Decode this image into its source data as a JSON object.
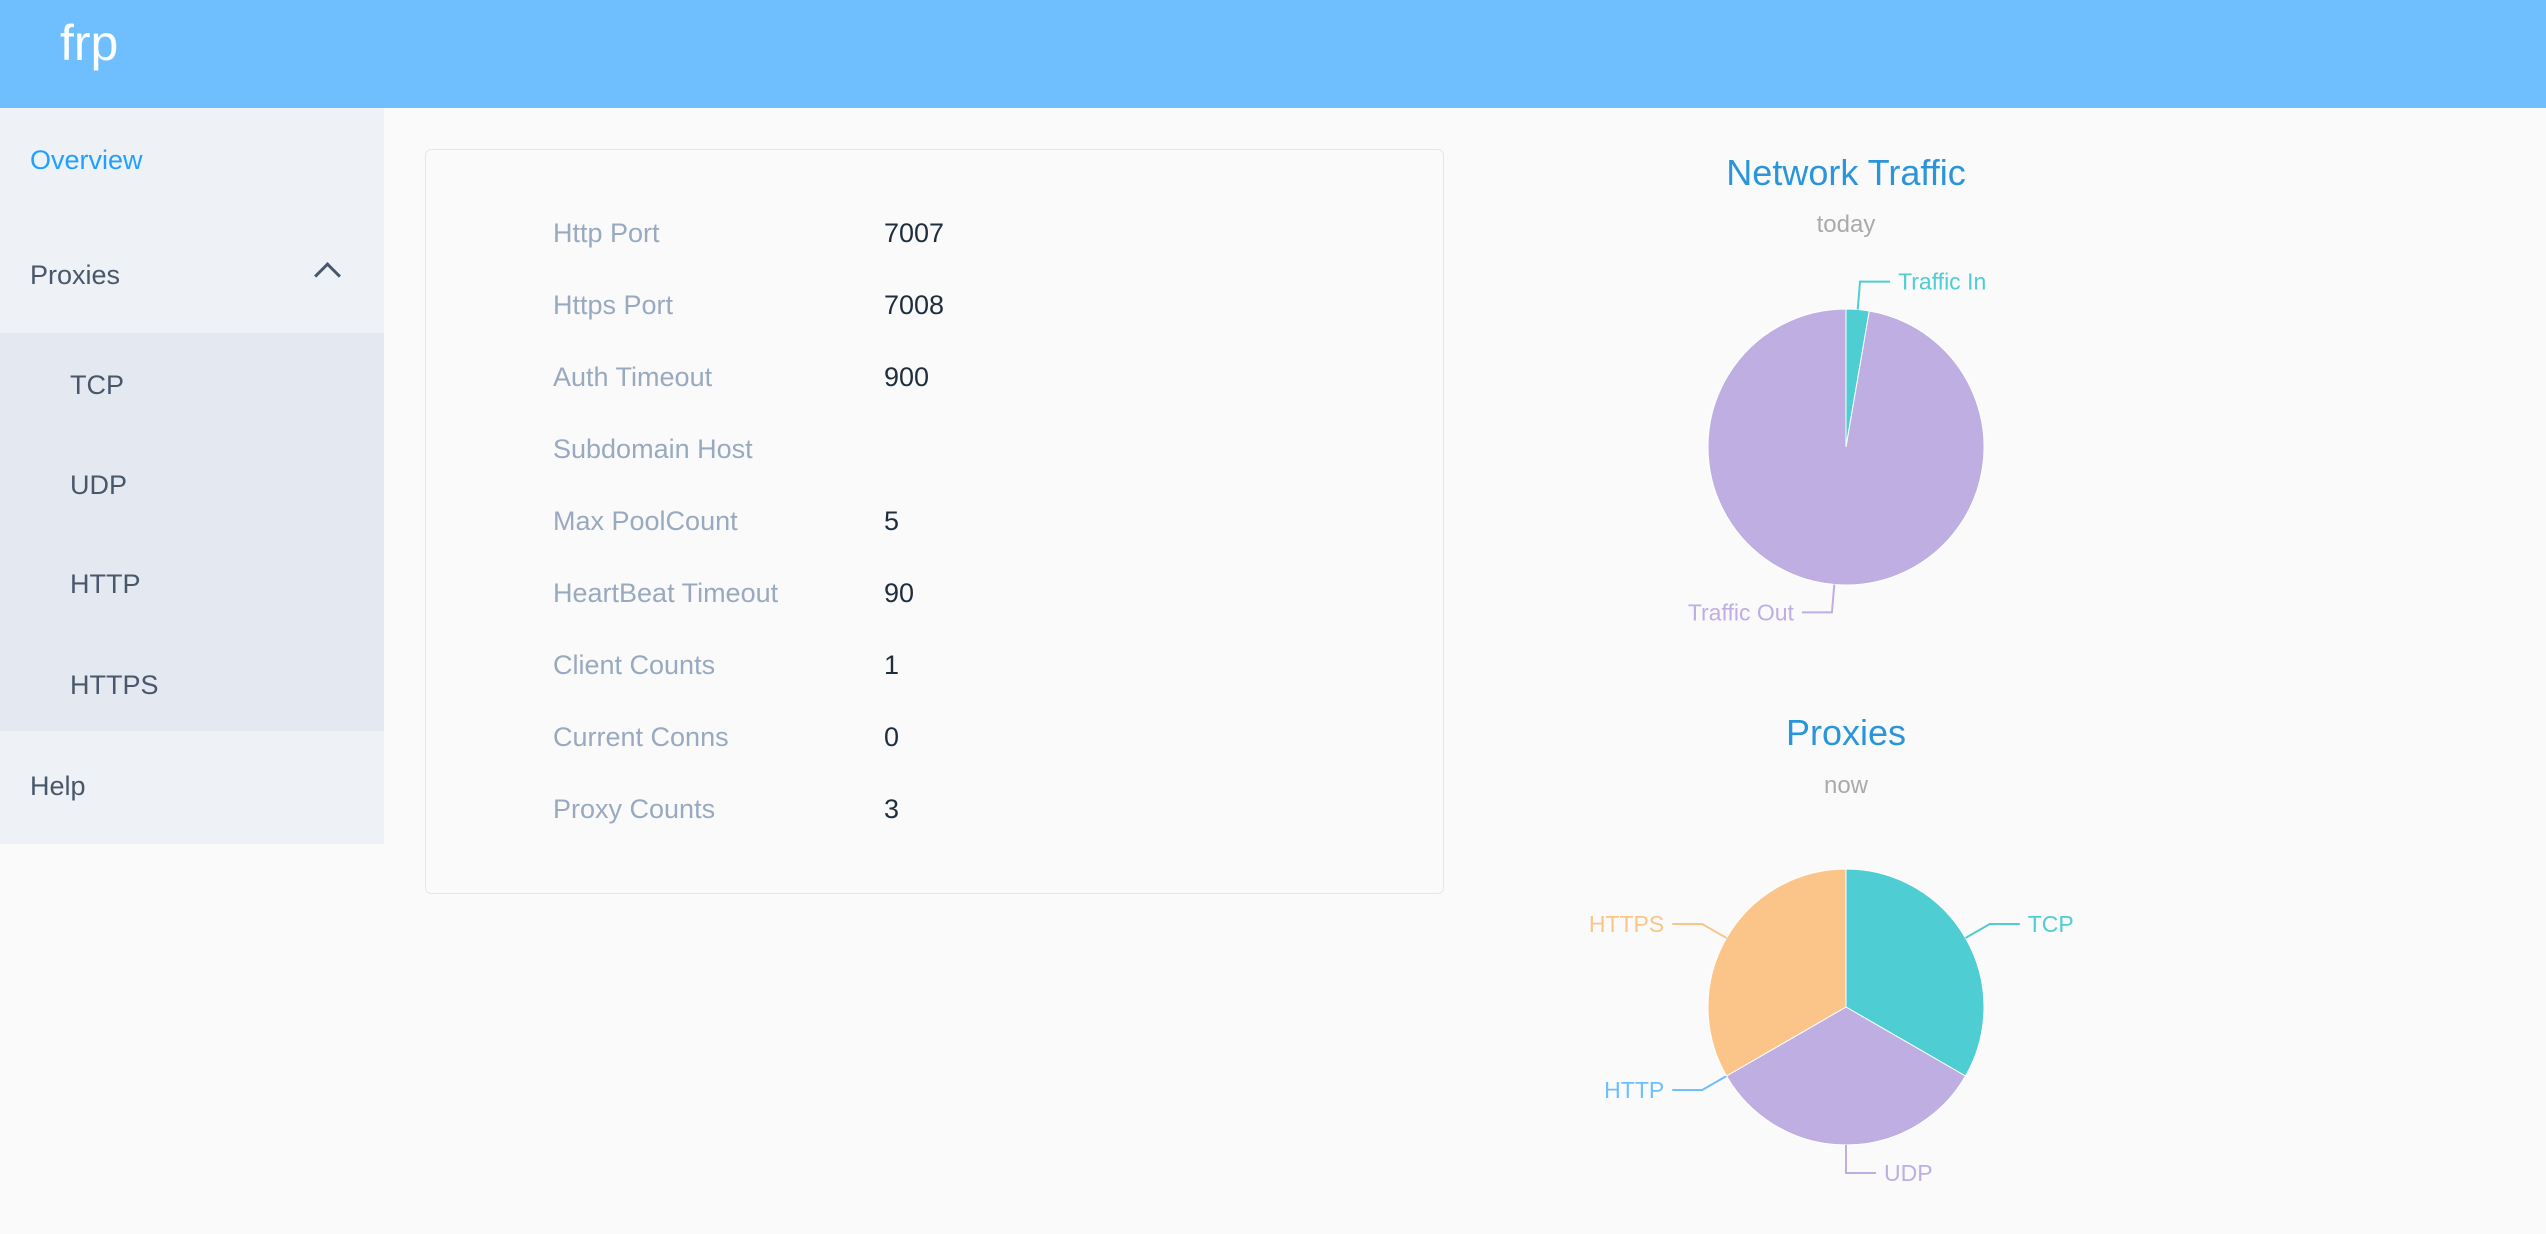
{
  "header": {
    "brand": "frp"
  },
  "sidebar": {
    "overview": "Overview",
    "proxies": "Proxies",
    "proxy_items": [
      "TCP",
      "UDP",
      "HTTP",
      "HTTPS"
    ],
    "help": "Help"
  },
  "overview": {
    "rows": [
      {
        "label": "Http Port",
        "value": "7007"
      },
      {
        "label": "Https Port",
        "value": "7008"
      },
      {
        "label": "Auth Timeout",
        "value": "900"
      },
      {
        "label": "Subdomain Host",
        "value": ""
      },
      {
        "label": "Max PoolCount",
        "value": "5"
      },
      {
        "label": "HeartBeat Timeout",
        "value": "90"
      },
      {
        "label": "Client Counts",
        "value": "1"
      },
      {
        "label": "Current Conns",
        "value": "0"
      },
      {
        "label": "Proxy Counts",
        "value": "3"
      }
    ]
  },
  "chart_data": [
    {
      "type": "pie",
      "title": "Network Traffic",
      "subtitle": "today",
      "slices": [
        {
          "name": "Traffic In",
          "value": 2.7,
          "color": "#4ecdd2"
        },
        {
          "name": "Traffic Out",
          "value": 97.3,
          "color": "#bfaee2"
        }
      ]
    },
    {
      "type": "pie",
      "title": "Proxies",
      "subtitle": "now",
      "slices": [
        {
          "name": "TCP",
          "value": 1,
          "color": "#4ecdd2"
        },
        {
          "name": "UDP",
          "value": 1,
          "color": "#bfaee2"
        },
        {
          "name": "HTTP",
          "value": 0,
          "color": "#6fbffe"
        },
        {
          "name": "HTTPS",
          "value": 1,
          "color": "#fbc58a"
        }
      ]
    }
  ]
}
